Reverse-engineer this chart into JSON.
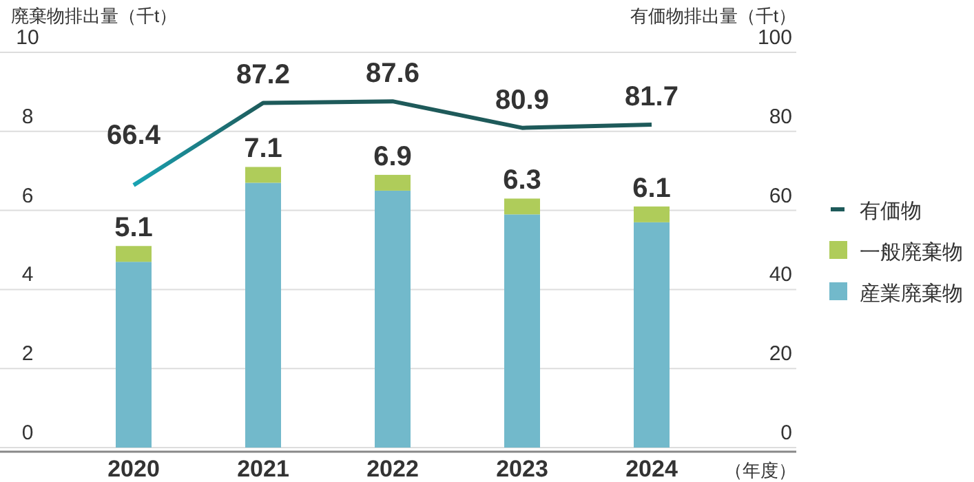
{
  "chart_data": {
    "type": "bar",
    "stacked": true,
    "ylabel": "廃棄物排出量（千t）",
    "y2label": "有価物排出量（千t）",
    "xlabel": "（年度）",
    "categories": [
      "2020",
      "2021",
      "2022",
      "2023",
      "2024"
    ],
    "series": [
      {
        "name": "産業廃棄物",
        "color": "#72b9cb",
        "values": [
          4.7,
          6.7,
          6.5,
          5.9,
          5.7
        ]
      },
      {
        "name": "一般廃棄物",
        "color": "#afcc5a",
        "values": [
          0.4,
          0.4,
          0.4,
          0.4,
          0.4
        ]
      },
      {
        "name": "有価物",
        "type": "line",
        "axis": "y2",
        "color": "#1e5a5a",
        "colors": [
          "#19a3b3",
          "#1e5a5a",
          "#1e5a5a",
          "#1e5a5a",
          "#1e5a5a"
        ],
        "values": [
          66.4,
          87.2,
          87.6,
          80.9,
          81.7
        ],
        "value_labels": [
          "66.4",
          "87.2",
          "87.6",
          "80.9",
          "81.7"
        ]
      }
    ],
    "totals": [
      "5.1",
      "7.1",
      "6.9",
      "6.3",
      "6.1"
    ],
    "ylim": [
      0,
      10
    ],
    "yticks": [
      0,
      2,
      4,
      6,
      8,
      10
    ],
    "y2lim": [
      0,
      100
    ],
    "y2ticks": [
      0,
      20,
      40,
      60,
      80,
      100
    ],
    "grid": "y",
    "legend": "right"
  }
}
